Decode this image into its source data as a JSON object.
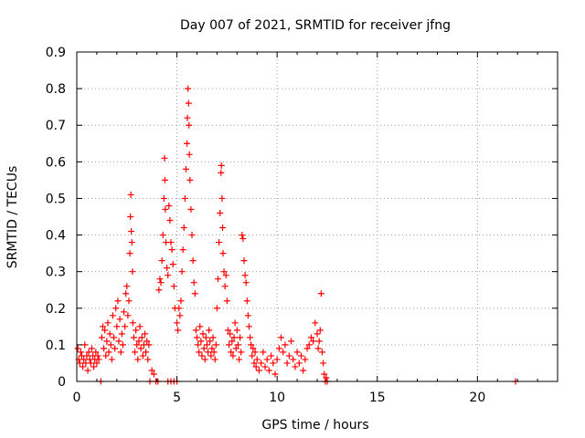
{
  "chart_data": {
    "type": "scatter",
    "title": "Day 007 of 2021, SRMTID for receiver jfng",
    "xlabel": "GPS time / hours",
    "ylabel": "SRMTID / TECUs",
    "xlim": [
      0,
      24
    ],
    "ylim": [
      0,
      0.9
    ],
    "x_ticks": [
      0,
      5,
      10,
      15,
      20
    ],
    "x_tick_labels": [
      "0",
      "5",
      "10",
      "15",
      "20"
    ],
    "y_ticks": [
      0,
      0.1,
      0.2,
      0.3,
      0.4,
      0.5,
      0.6,
      0.7,
      0.8,
      0.9
    ],
    "y_tick_labels": [
      "0",
      "0.1",
      "0.2",
      "0.3",
      "0.4",
      "0.5",
      "0.6",
      "0.7",
      "0.8",
      "0.9"
    ],
    "grid": true,
    "marker": "+",
    "series": [
      {
        "name": "SRMTID",
        "color": "#ff0000",
        "points": [
          [
            0.05,
            0.09
          ],
          [
            0.1,
            0.06
          ],
          [
            0.15,
            0.05
          ],
          [
            0.2,
            0.08
          ],
          [
            0.25,
            0.07
          ],
          [
            0.3,
            0.04
          ],
          [
            0.35,
            0.06
          ],
          [
            0.4,
            0.1
          ],
          [
            0.45,
            0.05
          ],
          [
            0.5,
            0.07
          ],
          [
            0.55,
            0.03
          ],
          [
            0.6,
            0.08
          ],
          [
            0.65,
            0.06
          ],
          [
            0.7,
            0.05
          ],
          [
            0.75,
            0.09
          ],
          [
            0.8,
            0.07
          ],
          [
            0.85,
            0.04
          ],
          [
            0.9,
            0.06
          ],
          [
            0.95,
            0.08
          ],
          [
            1.0,
            0.05
          ],
          [
            1.05,
            0.07
          ],
          [
            1.1,
            0.06
          ],
          [
            1.2,
            0.0
          ],
          [
            1.25,
            0.12
          ],
          [
            1.3,
            0.15
          ],
          [
            1.35,
            0.09
          ],
          [
            1.4,
            0.14
          ],
          [
            1.45,
            0.07
          ],
          [
            1.5,
            0.11
          ],
          [
            1.55,
            0.16
          ],
          [
            1.6,
            0.08
          ],
          [
            1.65,
            0.13
          ],
          [
            1.7,
            0.1
          ],
          [
            1.75,
            0.06
          ],
          [
            1.8,
            0.18
          ],
          [
            1.85,
            0.12
          ],
          [
            1.9,
            0.09
          ],
          [
            1.95,
            0.2
          ],
          [
            2.0,
            0.15
          ],
          [
            2.05,
            0.22
          ],
          [
            2.1,
            0.11
          ],
          [
            2.15,
            0.17
          ],
          [
            2.2,
            0.08
          ],
          [
            2.25,
            0.13
          ],
          [
            2.3,
            0.1
          ],
          [
            2.35,
            0.19
          ],
          [
            2.4,
            0.15
          ],
          [
            2.45,
            0.24
          ],
          [
            2.5,
            0.26
          ],
          [
            2.55,
            0.18
          ],
          [
            2.6,
            0.22
          ],
          [
            2.65,
            0.35
          ],
          [
            2.68,
            0.45
          ],
          [
            2.7,
            0.51
          ],
          [
            2.72,
            0.41
          ],
          [
            2.75,
            0.38
          ],
          [
            2.78,
            0.3
          ],
          [
            2.8,
            0.16
          ],
          [
            2.85,
            0.12
          ],
          [
            2.9,
            0.08
          ],
          [
            2.95,
            0.14
          ],
          [
            3.0,
            0.1
          ],
          [
            3.05,
            0.06
          ],
          [
            3.1,
            0.11
          ],
          [
            3.15,
            0.15
          ],
          [
            3.2,
            0.09
          ],
          [
            3.25,
            0.12
          ],
          [
            3.3,
            0.07
          ],
          [
            3.35,
            0.1
          ],
          [
            3.4,
            0.13
          ],
          [
            3.45,
            0.08
          ],
          [
            3.5,
            0.11
          ],
          [
            3.55,
            0.06
          ],
          [
            3.6,
            0.1
          ],
          [
            3.65,
            0.0
          ],
          [
            3.75,
            0.03
          ],
          [
            3.85,
            0.02
          ],
          [
            3.95,
            0.0
          ],
          [
            4.05,
            0.0
          ],
          [
            4.1,
            0.25
          ],
          [
            4.15,
            0.28
          ],
          [
            4.2,
            0.27
          ],
          [
            4.25,
            0.33
          ],
          [
            4.3,
            0.4
          ],
          [
            4.35,
            0.5
          ],
          [
            4.38,
            0.61
          ],
          [
            4.4,
            0.55
          ],
          [
            4.42,
            0.47
          ],
          [
            4.45,
            0.38
          ],
          [
            4.5,
            0.31
          ],
          [
            4.55,
            0.29
          ],
          [
            4.6,
            0.48
          ],
          [
            4.65,
            0.44
          ],
          [
            4.7,
            0.38
          ],
          [
            4.75,
            0.36
          ],
          [
            4.8,
            0.32
          ],
          [
            4.85,
            0.26
          ],
          [
            4.9,
            0.2
          ],
          [
            4.55,
            0.0
          ],
          [
            4.7,
            0.0
          ],
          [
            4.85,
            0.0
          ],
          [
            5.0,
            0.0
          ],
          [
            5.0,
            0.16
          ],
          [
            5.05,
            0.14
          ],
          [
            5.1,
            0.2
          ],
          [
            5.15,
            0.18
          ],
          [
            5.2,
            0.22
          ],
          [
            5.25,
            0.3
          ],
          [
            5.3,
            0.36
          ],
          [
            5.35,
            0.42
          ],
          [
            5.4,
            0.5
          ],
          [
            5.45,
            0.58
          ],
          [
            5.5,
            0.65
          ],
          [
            5.52,
            0.72
          ],
          [
            5.55,
            0.8
          ],
          [
            5.58,
            0.76
          ],
          [
            5.6,
            0.7
          ],
          [
            5.62,
            0.62
          ],
          [
            5.65,
            0.55
          ],
          [
            5.7,
            0.47
          ],
          [
            5.75,
            0.4
          ],
          [
            5.8,
            0.33
          ],
          [
            5.85,
            0.27
          ],
          [
            5.9,
            0.24
          ],
          [
            5.95,
            0.14
          ],
          [
            6.0,
            0.12
          ],
          [
            6.05,
            0.1
          ],
          [
            6.1,
            0.08
          ],
          [
            6.15,
            0.15
          ],
          [
            6.2,
            0.11
          ],
          [
            6.25,
            0.07
          ],
          [
            6.3,
            0.13
          ],
          [
            6.35,
            0.09
          ],
          [
            6.4,
            0.06
          ],
          [
            6.45,
            0.12
          ],
          [
            6.5,
            0.1
          ],
          [
            6.55,
            0.08
          ],
          [
            6.6,
            0.14
          ],
          [
            6.65,
            0.11
          ],
          [
            6.7,
            0.07
          ],
          [
            6.75,
            0.09
          ],
          [
            6.8,
            0.12
          ],
          [
            6.85,
            0.08
          ],
          [
            6.9,
            0.06
          ],
          [
            6.95,
            0.1
          ],
          [
            7.0,
            0.2
          ],
          [
            7.05,
            0.28
          ],
          [
            7.1,
            0.38
          ],
          [
            7.15,
            0.46
          ],
          [
            7.2,
            0.57
          ],
          [
            7.22,
            0.59
          ],
          [
            7.25,
            0.5
          ],
          [
            7.28,
            0.42
          ],
          [
            7.3,
            0.35
          ],
          [
            7.35,
            0.3
          ],
          [
            7.4,
            0.26
          ],
          [
            7.45,
            0.29
          ],
          [
            7.5,
            0.22
          ],
          [
            7.55,
            0.14
          ],
          [
            7.6,
            0.1
          ],
          [
            7.65,
            0.13
          ],
          [
            7.7,
            0.08
          ],
          [
            7.75,
            0.11
          ],
          [
            7.8,
            0.07
          ],
          [
            7.85,
            0.12
          ],
          [
            7.9,
            0.16
          ],
          [
            7.95,
            0.09
          ],
          [
            8.0,
            0.14
          ],
          [
            8.05,
            0.1
          ],
          [
            8.1,
            0.06
          ],
          [
            8.15,
            0.12
          ],
          [
            8.2,
            0.08
          ],
          [
            8.25,
            0.4
          ],
          [
            8.3,
            0.39
          ],
          [
            8.35,
            0.33
          ],
          [
            8.4,
            0.29
          ],
          [
            8.45,
            0.27
          ],
          [
            8.5,
            0.22
          ],
          [
            8.55,
            0.18
          ],
          [
            8.6,
            0.15
          ],
          [
            8.65,
            0.12
          ],
          [
            8.7,
            0.1
          ],
          [
            8.75,
            0.07
          ],
          [
            8.8,
            0.09
          ],
          [
            8.85,
            0.05
          ],
          [
            8.9,
            0.08
          ],
          [
            8.95,
            0.04
          ],
          [
            9.0,
            0.06
          ],
          [
            9.1,
            0.03
          ],
          [
            9.2,
            0.05
          ],
          [
            9.3,
            0.08
          ],
          [
            9.4,
            0.04
          ],
          [
            9.5,
            0.06
          ],
          [
            9.6,
            0.03
          ],
          [
            9.7,
            0.07
          ],
          [
            9.8,
            0.05
          ],
          [
            9.9,
            0.02
          ],
          [
            10.0,
            0.06
          ],
          [
            10.1,
            0.09
          ],
          [
            10.2,
            0.12
          ],
          [
            10.3,
            0.08
          ],
          [
            10.4,
            0.1
          ],
          [
            10.5,
            0.05
          ],
          [
            10.6,
            0.07
          ],
          [
            10.7,
            0.11
          ],
          [
            10.8,
            0.06
          ],
          [
            10.9,
            0.04
          ],
          [
            11.0,
            0.08
          ],
          [
            11.1,
            0.05
          ],
          [
            11.2,
            0.07
          ],
          [
            11.3,
            0.03
          ],
          [
            11.4,
            0.06
          ],
          [
            11.5,
            0.09
          ],
          [
            11.6,
            0.1
          ],
          [
            11.7,
            0.12
          ],
          [
            11.8,
            0.11
          ],
          [
            11.9,
            0.16
          ],
          [
            12.0,
            0.13
          ],
          [
            12.05,
            0.09
          ],
          [
            12.1,
            0.11
          ],
          [
            12.15,
            0.14
          ],
          [
            12.2,
            0.24
          ],
          [
            12.25,
            0.08
          ],
          [
            12.3,
            0.05
          ],
          [
            12.35,
            0.02
          ],
          [
            12.4,
            0.0
          ],
          [
            12.45,
            0.01
          ],
          [
            12.5,
            0.0
          ],
          [
            21.9,
            0.0
          ]
        ]
      }
    ]
  }
}
